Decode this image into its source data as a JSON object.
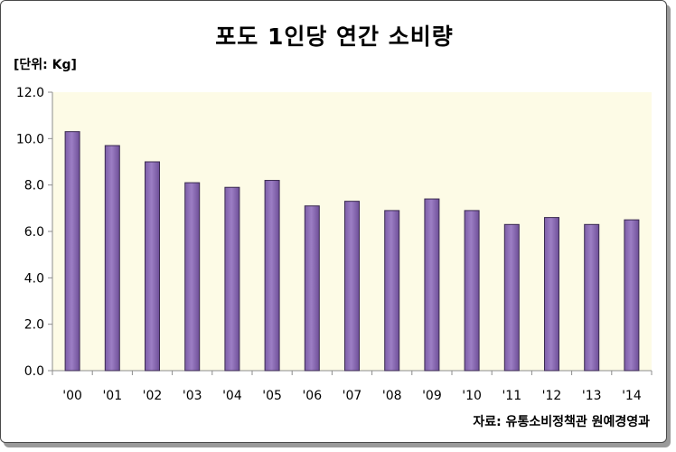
{
  "chart_data": {
    "type": "bar",
    "title": "포도 1인당 연간 소비량",
    "unit_label": "[단위: Kg]",
    "source": "자료: 유통소비정책관 원예경영과",
    "xlabel": "",
    "ylabel": "",
    "categories": [
      "'00",
      "'01",
      "'02",
      "'03",
      "'04",
      "'05",
      "'06",
      "'07",
      "'08",
      "'09",
      "'10",
      "'11",
      "'12",
      "'13",
      "'14"
    ],
    "values": [
      10.3,
      9.7,
      9.0,
      8.1,
      7.9,
      8.2,
      7.1,
      7.3,
      6.9,
      7.4,
      6.9,
      6.3,
      6.6,
      6.3,
      6.5
    ],
    "ylim": [
      0,
      12
    ],
    "yticks": [
      "0.0",
      "2.0",
      "4.0",
      "6.0",
      "8.0",
      "10.0",
      "12.0"
    ],
    "grid": false,
    "legend": "none",
    "colors": {
      "plot_background": "#fdfbe6",
      "bar_fill": "#9c7ec4",
      "bar_border": "#3a2a50"
    }
  }
}
